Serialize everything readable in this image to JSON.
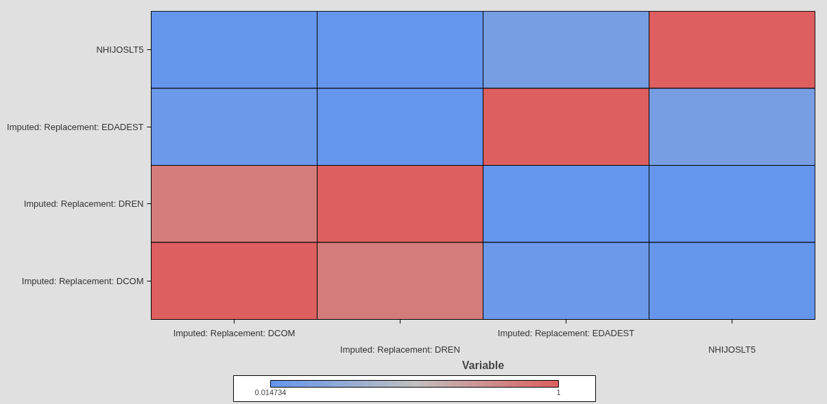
{
  "chart_data": {
    "type": "heatmap",
    "xlabel": "Variable",
    "categories": [
      "Imputed: Replacement: DCOM",
      "Imputed: Replacement: DREN",
      "Imputed: Replacement: EDADEST",
      "NHIJOSLT5"
    ],
    "y_categories": [
      "NHIJOSLT5",
      "Imputed: Replacement: EDADEST",
      "Imputed: Replacement: DREN",
      "Imputed: Replacement: DCOM"
    ],
    "cells": [
      [
        0.03,
        0.02,
        0.12,
        1
      ],
      [
        0.06,
        0.02,
        1,
        0.12
      ],
      [
        0.85,
        1,
        0.02,
        0.02
      ],
      [
        1,
        0.85,
        0.06,
        0.03
      ]
    ],
    "colors": [
      "#6495ed",
      "#c0c0c0",
      "#dd5f5f"
    ],
    "clim": [
      0.014734,
      1
    ],
    "cticks": [
      0.014734,
      1
    ]
  }
}
